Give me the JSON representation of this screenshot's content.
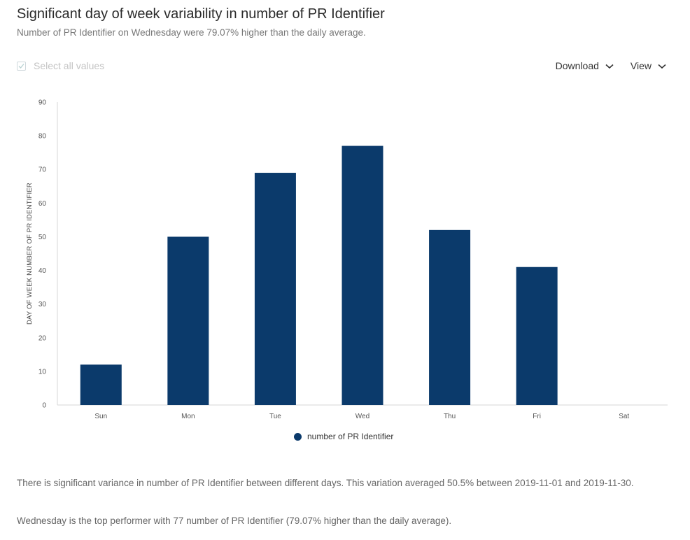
{
  "header": {
    "title": "Significant day of week variability in number of PR Identifier",
    "subtitle": "Number of PR Identifier on Wednesday were 79.07% higher than the daily average."
  },
  "controls": {
    "select_all_label": "Select all values",
    "select_all_checked": true,
    "download_label": "Download",
    "view_label": "View",
    "chevron_icon": "chevron-down-icon",
    "check_icon": "check-icon"
  },
  "chart_data": {
    "type": "bar",
    "categories": [
      "Sun",
      "Mon",
      "Tue",
      "Wed",
      "Thu",
      "Fri",
      "Sat"
    ],
    "series": [
      {
        "name": "number of PR Identifier",
        "values": [
          12,
          50,
          69,
          77,
          52,
          41,
          0
        ],
        "color": "#0b3a6b"
      }
    ],
    "title": "Significant day of week variability in number of PR Identifier",
    "xlabel": "",
    "ylabel": "DAY OF WEEK NUMBER OF PR IDENTIFIER",
    "ylim": [
      0,
      90
    ],
    "yticks": [
      0,
      10,
      20,
      30,
      40,
      50,
      60,
      70,
      80,
      90
    ],
    "grid": false,
    "legend_position": "bottom-center"
  },
  "insights": {
    "paragraph_1": "There is significant variance in number of PR Identifier between different days. This variation averaged 50.5% between 2019-11-01 and 2019-11-30.",
    "paragraph_2": "Wednesday is the top performer with 77 number of PR Identifier (79.07% higher than the daily average)."
  }
}
